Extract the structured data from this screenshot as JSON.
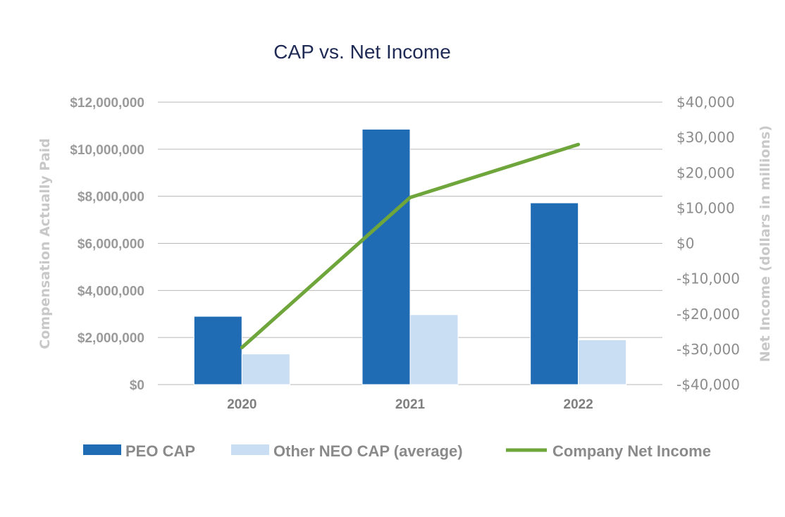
{
  "chart_data": {
    "type": "bar",
    "title": "CAP vs. Net Income",
    "categories": [
      "2020",
      "2021",
      "2022"
    ],
    "series": [
      {
        "name": "PEO CAP",
        "axis": "left",
        "kind": "bar",
        "color": "#1f6cb5",
        "values": [
          2900000,
          10850000,
          7720000
        ]
      },
      {
        "name": "Other NEO CAP (average)",
        "axis": "left",
        "kind": "bar",
        "color": "#c9def2",
        "values": [
          1300000,
          2970000,
          1900000
        ]
      },
      {
        "name": "Company Net Income",
        "axis": "right",
        "kind": "line",
        "color": "#6fa63c",
        "values": [
          -29500,
          13000,
          28000
        ]
      }
    ],
    "ylabel": "Compensation Actually Paid",
    "ylabel_right": "Net Income (dollars in millions)",
    "ylim": [
      0,
      12000000
    ],
    "ylim_right": [
      -40000,
      40000
    ],
    "yticks": [
      "$0",
      "$2,000,000",
      "$4,000,000",
      "$6,000,000",
      "$8,000,000",
      "$10,000,000",
      "$12,000,000"
    ],
    "yticks_right": [
      "-$40,000",
      "-$30,000",
      "-$20,000",
      "-$10,000",
      "$0",
      "$10,000",
      "$20,000",
      "$30,000",
      "$40,000"
    ],
    "grid": true,
    "legend_position": "bottom"
  }
}
